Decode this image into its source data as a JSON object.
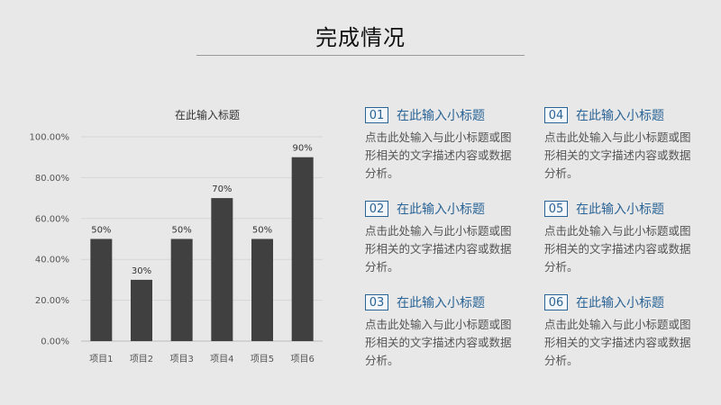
{
  "slide": {
    "title": "完成情况"
  },
  "chart_data": {
    "type": "bar",
    "title": "在此输入标题",
    "categories": [
      "项目1",
      "项目2",
      "项目3",
      "项目4",
      "项目5",
      "项目6"
    ],
    "values": [
      0.5,
      0.3,
      0.5,
      0.7,
      0.5,
      0.9
    ],
    "data_labels": [
      "50%",
      "30%",
      "50%",
      "70%",
      "50%",
      "90%"
    ],
    "ylim": [
      0,
      1
    ],
    "yticks": [
      0,
      0.2,
      0.4,
      0.6,
      0.8,
      1.0
    ],
    "ytick_labels": [
      "0.00%",
      "20.00%",
      "40.00%",
      "60.00%",
      "80.00%",
      "100.00%"
    ],
    "xlabel": "",
    "ylabel": "",
    "grid": true,
    "bar_color": "#404040"
  },
  "items": [
    {
      "num": "01",
      "title": "在此输入小标题",
      "desc": "点击此处输入与此小标题或图形相关的文字描述内容或数据分析。"
    },
    {
      "num": "02",
      "title": "在此输入小标题",
      "desc": "点击此处输入与此小标题或图形相关的文字描述内容或数据分析。"
    },
    {
      "num": "03",
      "title": "在此输入小标题",
      "desc": "点击此处输入与此小标题或图形相关的文字描述内容或数据分析。"
    },
    {
      "num": "04",
      "title": "在此输入小标题",
      "desc": "点击此处输入与此小标题或图形相关的文字描述内容或数据分析。"
    },
    {
      "num": "05",
      "title": "在此输入小标题",
      "desc": "点击此处输入与此小标题或图形相关的文字描述内容或数据分析。"
    },
    {
      "num": "06",
      "title": "在此输入小标题",
      "desc": "点击此处输入与此小标题或图形相关的文字描述内容或数据分析。"
    }
  ],
  "colors": {
    "accent": "#2a6496",
    "background": "#e8e8e8"
  }
}
